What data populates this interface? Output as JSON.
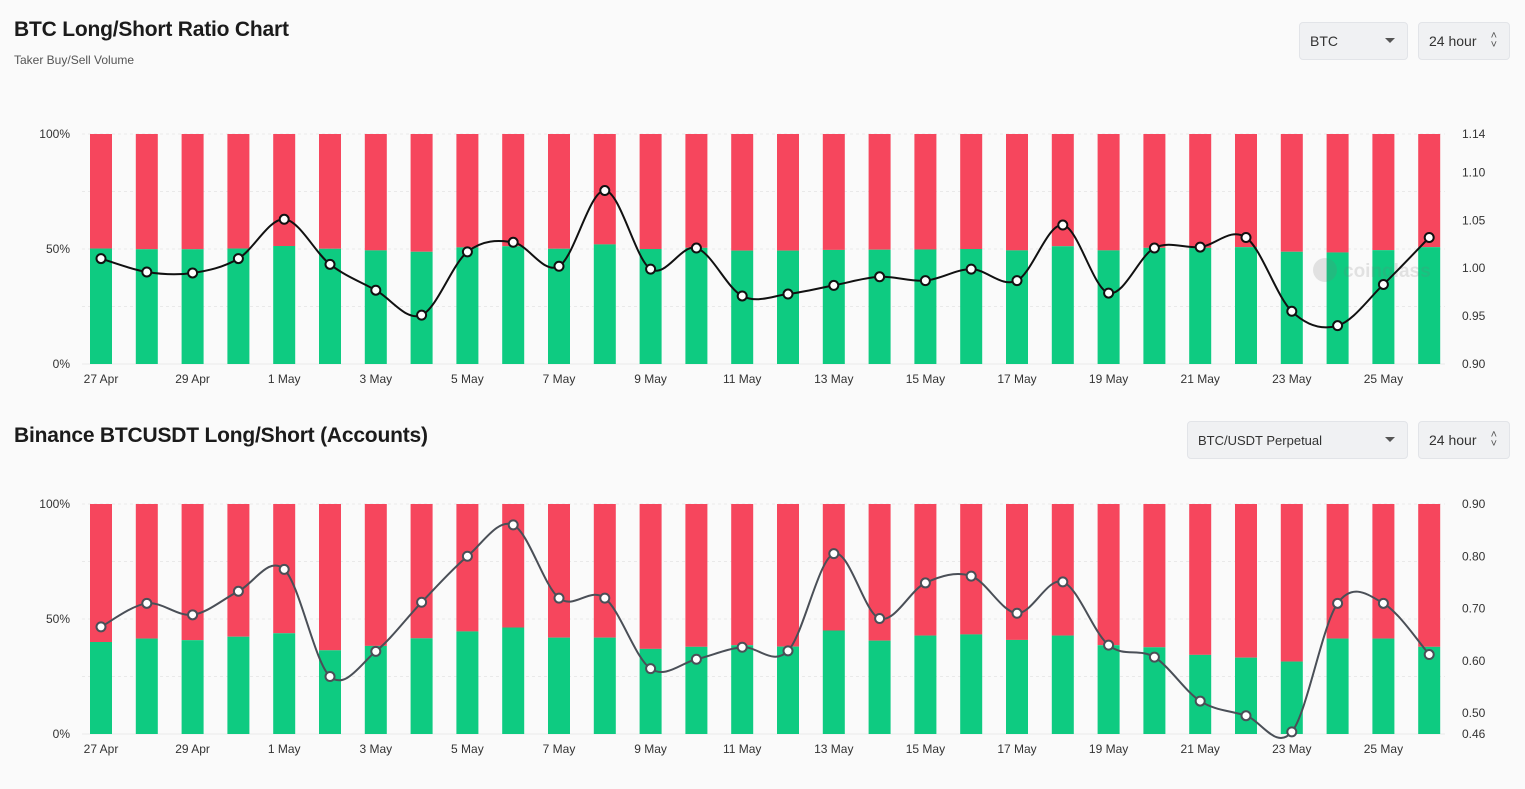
{
  "chart1": {
    "title": "BTC Long/Short Ratio Chart",
    "subtitle": "Taker Buy/Sell Volume",
    "select_label": "BTC",
    "interval_label": "24 hour"
  },
  "chart2": {
    "title": "Binance BTCUSDT Long/Short (Accounts)",
    "select_label": "BTC/USDT Perpetual",
    "interval_label": "24 hour"
  },
  "watermark": "coinglass",
  "chart_data": [
    {
      "type": "bar",
      "stacked": true,
      "x_tick_labels": [
        "27 Apr",
        "29 Apr",
        "1 May",
        "3 May",
        "5 May",
        "7 May",
        "9 May",
        "11 May",
        "13 May",
        "15 May",
        "17 May",
        "19 May",
        "21 May",
        "23 May",
        "25 May"
      ],
      "left_axis_ticks": [
        "0%",
        "50%",
        "100%"
      ],
      "right_axis_ticks": [
        0.9,
        0.95,
        1.0,
        1.05,
        1.1,
        1.14
      ],
      "right_ylim": [
        0.9,
        1.14
      ],
      "colors": {
        "long": "#0ecb81",
        "short": "#f6465d",
        "line": "#111111"
      },
      "series": [
        {
          "name": "long_percent",
          "values": [
            50.2,
            49.9,
            49.9,
            50.2,
            51.3,
            50.1,
            49.4,
            48.8,
            50.7,
            51.2,
            50.1,
            52.0,
            50.0,
            50.5,
            49.3,
            49.3,
            49.6,
            49.7,
            49.8,
            50.0,
            49.4,
            51.2,
            49.4,
            50.5,
            50.5,
            50.8,
            48.8,
            48.5,
            49.5,
            50.8
          ]
        },
        {
          "name": "ratio",
          "values": [
            1.01,
            0.996,
            0.995,
            1.01,
            1.051,
            1.004,
            0.977,
            0.951,
            1.017,
            1.027,
            1.002,
            1.081,
            0.999,
            1.021,
            0.971,
            0.973,
            0.982,
            0.991,
            0.987,
            0.999,
            0.987,
            1.045,
            0.974,
            1.021,
            1.022,
            1.032,
            0.955,
            0.94,
            0.983,
            1.032
          ]
        }
      ]
    },
    {
      "type": "bar",
      "stacked": true,
      "x_tick_labels": [
        "27 Apr",
        "29 Apr",
        "1 May",
        "3 May",
        "5 May",
        "7 May",
        "9 May",
        "11 May",
        "13 May",
        "15 May",
        "17 May",
        "19 May",
        "21 May",
        "23 May",
        "25 May"
      ],
      "left_axis_ticks": [
        "0%",
        "50%",
        "100%"
      ],
      "right_axis_ticks": [
        0.46,
        0.5,
        0.6,
        0.7,
        0.8,
        0.9
      ],
      "right_ylim": [
        0.46,
        0.9
      ],
      "colors": {
        "long": "#0ecb81",
        "short": "#f6465d",
        "line": "#4a4f57"
      },
      "series": [
        {
          "name": "long_percent",
          "values": [
            40,
            41.5,
            40.8,
            42.3,
            43.8,
            36.4,
            38.3,
            41.6,
            44.6,
            46.3,
            41.9,
            41.9,
            37.0,
            37.9,
            38.6,
            38.0,
            45.0,
            40.6,
            42.8,
            43.3,
            40.9,
            42.8,
            38.6,
            37.7,
            34.4,
            33.2,
            31.5,
            41.5,
            41.5,
            37.9
          ]
        },
        {
          "name": "ratio",
          "values": [
            0.665,
            0.71,
            0.688,
            0.733,
            0.775,
            0.57,
            0.618,
            0.712,
            0.8,
            0.86,
            0.72,
            0.72,
            0.585,
            0.603,
            0.626,
            0.619,
            0.805,
            0.681,
            0.749,
            0.762,
            0.691,
            0.751,
            0.63,
            0.607,
            0.523,
            0.495,
            0.464,
            0.71,
            0.71,
            0.612
          ]
        }
      ]
    }
  ]
}
